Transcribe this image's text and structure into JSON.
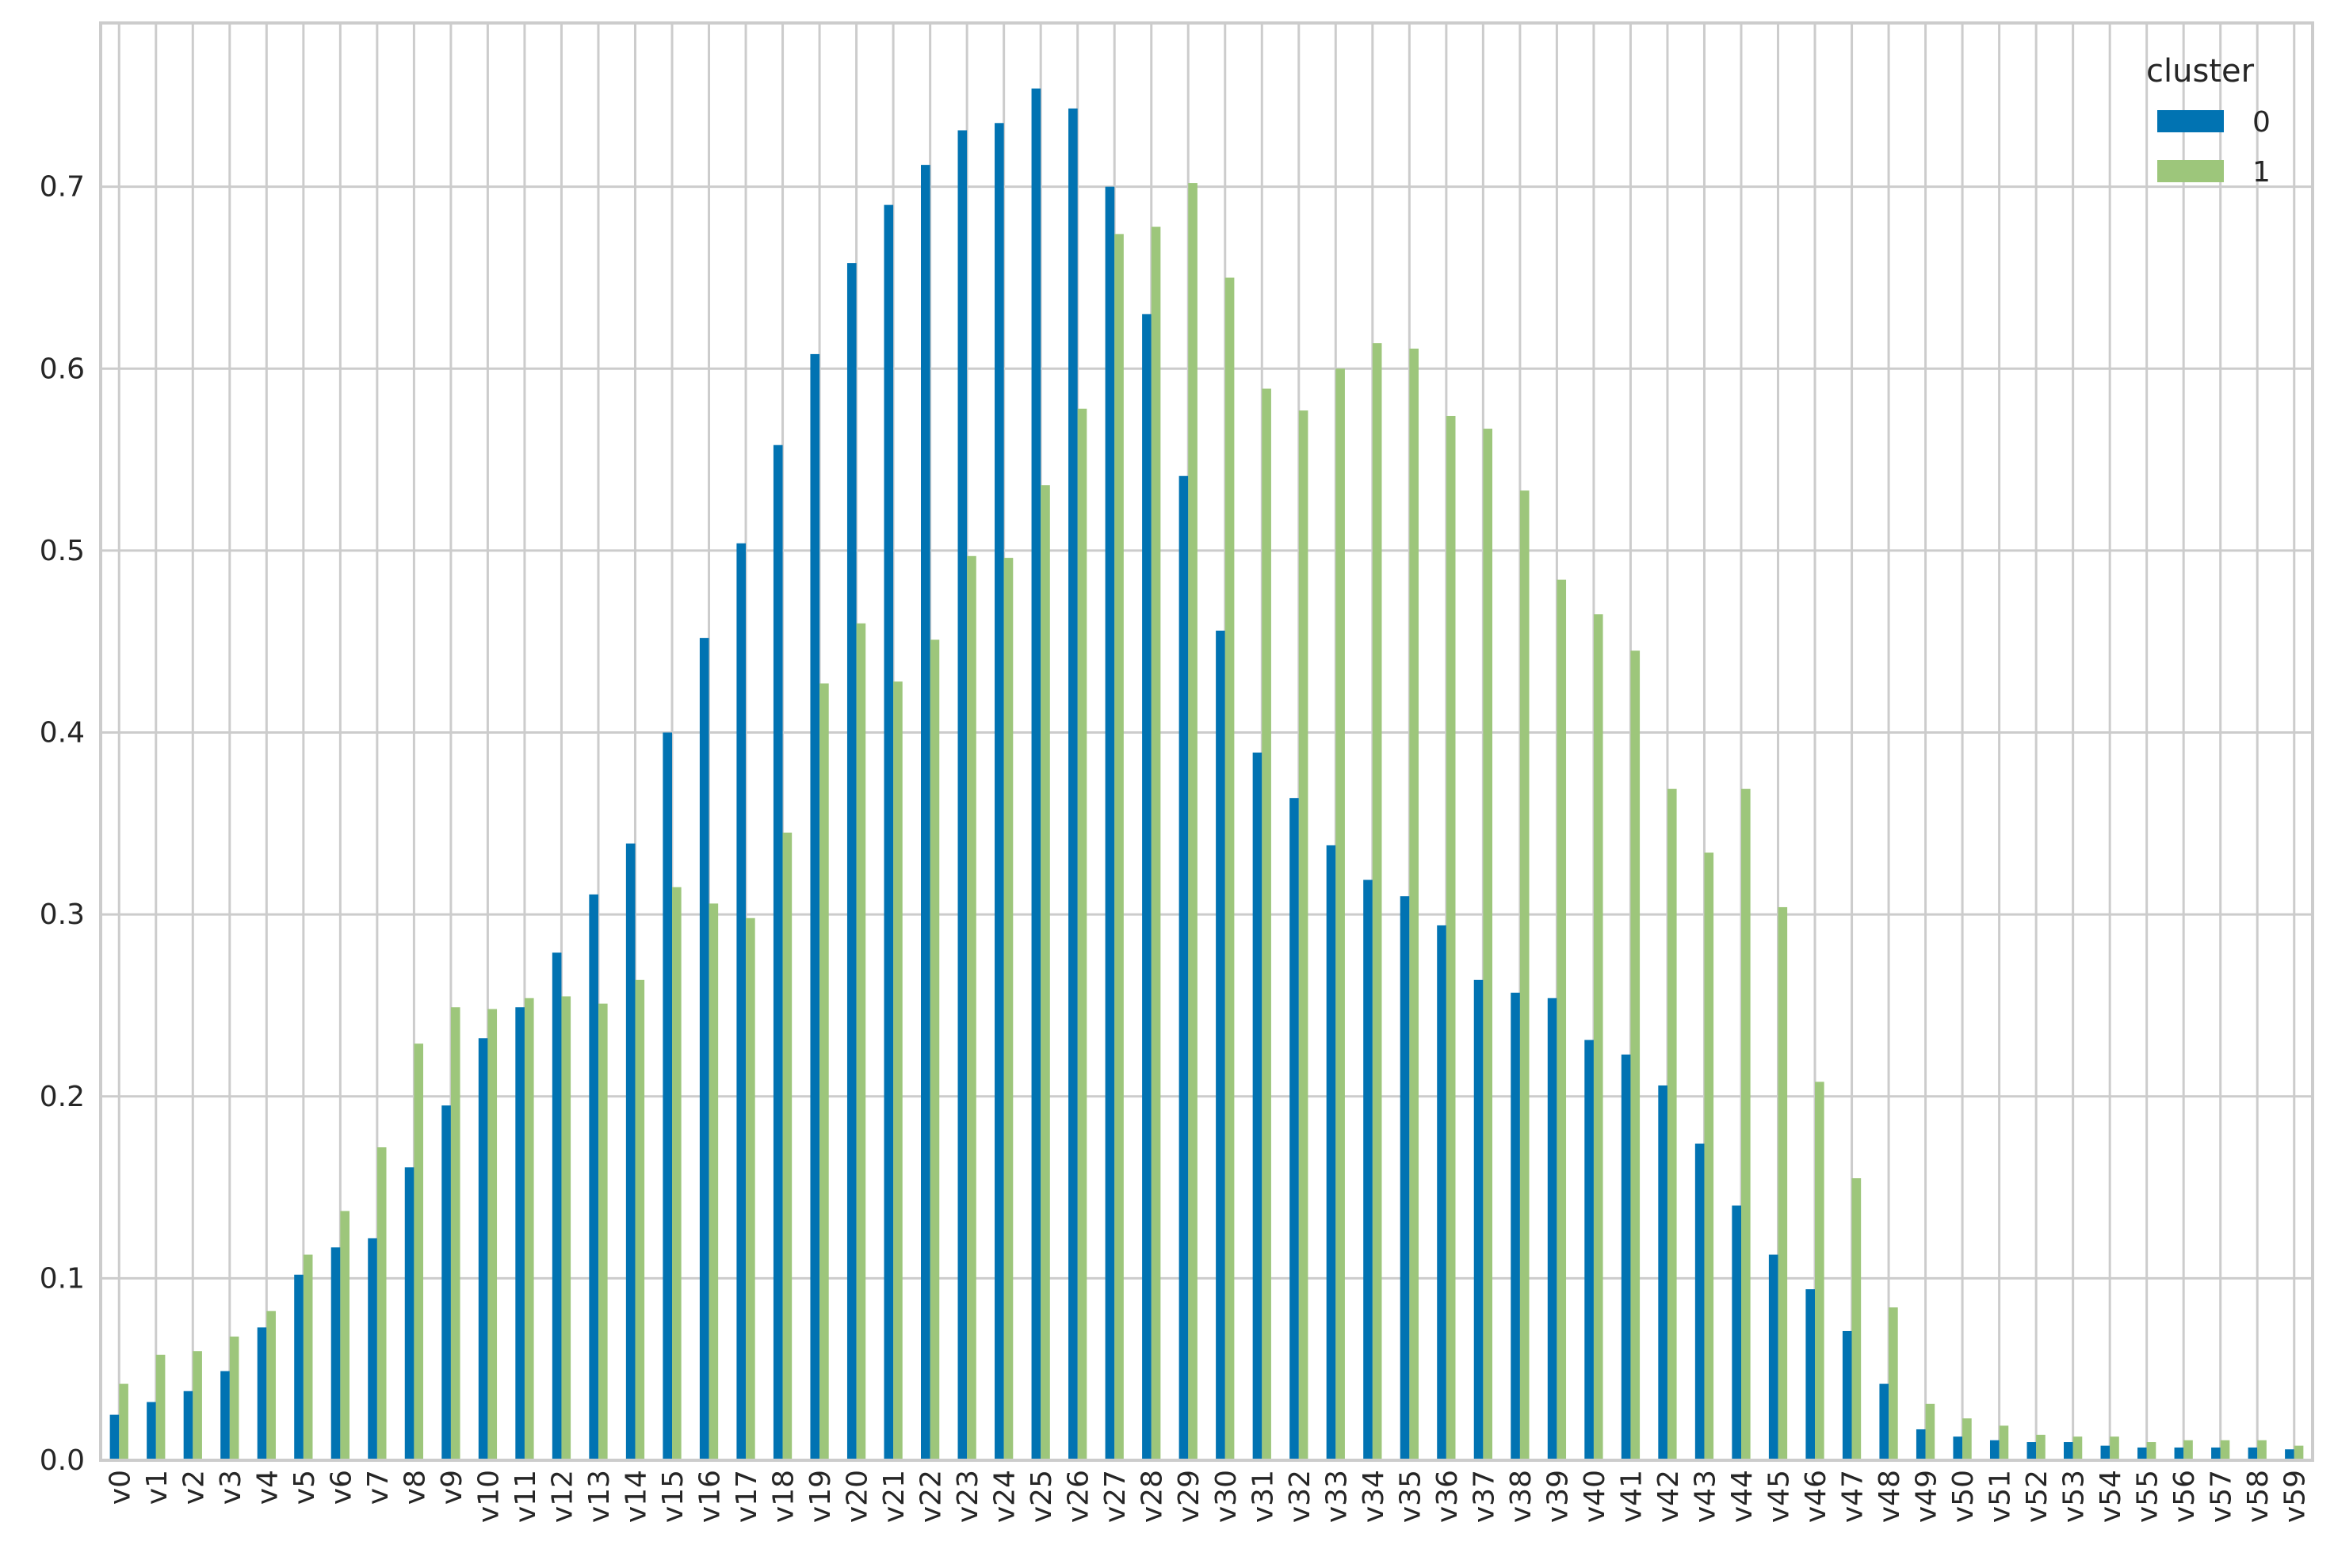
{
  "chart_data": {
    "type": "bar",
    "categories": [
      "v0",
      "v1",
      "v2",
      "v3",
      "v4",
      "v5",
      "v6",
      "v7",
      "v8",
      "v9",
      "v10",
      "v11",
      "v12",
      "v13",
      "v14",
      "v15",
      "v16",
      "v17",
      "v18",
      "v19",
      "v20",
      "v21",
      "v22",
      "v23",
      "v24",
      "v25",
      "v26",
      "v27",
      "v28",
      "v29",
      "v30",
      "v31",
      "v32",
      "v33",
      "v34",
      "v35",
      "v36",
      "v37",
      "v38",
      "v39",
      "v40",
      "v41",
      "v42",
      "v43",
      "v44",
      "v45",
      "v46",
      "v47",
      "v48",
      "v49",
      "v50",
      "v51",
      "v52",
      "v53",
      "v54",
      "v55",
      "v56",
      "v57",
      "v58",
      "v59"
    ],
    "series": [
      {
        "name": "0",
        "color": "#0173b2",
        "values": [
          0.025,
          0.032,
          0.038,
          0.049,
          0.073,
          0.102,
          0.117,
          0.122,
          0.161,
          0.195,
          0.232,
          0.249,
          0.279,
          0.311,
          0.339,
          0.4,
          0.452,
          0.504,
          0.558,
          0.608,
          0.658,
          0.69,
          0.712,
          0.731,
          0.735,
          0.754,
          0.743,
          0.7,
          0.63,
          0.541,
          0.456,
          0.389,
          0.364,
          0.338,
          0.319,
          0.31,
          0.294,
          0.264,
          0.257,
          0.254,
          0.231,
          0.223,
          0.206,
          0.174,
          0.14,
          0.113,
          0.094,
          0.071,
          0.042,
          0.017,
          0.013,
          0.011,
          0.01,
          0.01,
          0.008,
          0.007,
          0.007,
          0.007,
          0.007,
          0.006
        ]
      },
      {
        "name": "1",
        "color": "#9dc67b",
        "values": [
          0.042,
          0.058,
          0.06,
          0.068,
          0.082,
          0.113,
          0.137,
          0.172,
          0.229,
          0.249,
          0.248,
          0.254,
          0.255,
          0.251,
          0.264,
          0.315,
          0.306,
          0.298,
          0.345,
          0.427,
          0.46,
          0.428,
          0.451,
          0.497,
          0.496,
          0.536,
          0.578,
          0.674,
          0.678,
          0.702,
          0.65,
          0.589,
          0.577,
          0.6,
          0.614,
          0.611,
          0.574,
          0.567,
          0.533,
          0.484,
          0.465,
          0.445,
          0.369,
          0.334,
          0.369,
          0.304,
          0.208,
          0.155,
          0.084,
          0.031,
          0.023,
          0.019,
          0.014,
          0.013,
          0.013,
          0.01,
          0.011,
          0.011,
          0.011,
          0.008
        ]
      }
    ],
    "yticks": [
      "0.0",
      "0.1",
      "0.2",
      "0.3",
      "0.4",
      "0.5",
      "0.6",
      "0.7"
    ],
    "ylim": [
      0,
      0.79
    ],
    "grid": true,
    "legend": {
      "title": "cluster",
      "position": "top-right"
    },
    "title": "",
    "xlabel": "",
    "ylabel": ""
  }
}
